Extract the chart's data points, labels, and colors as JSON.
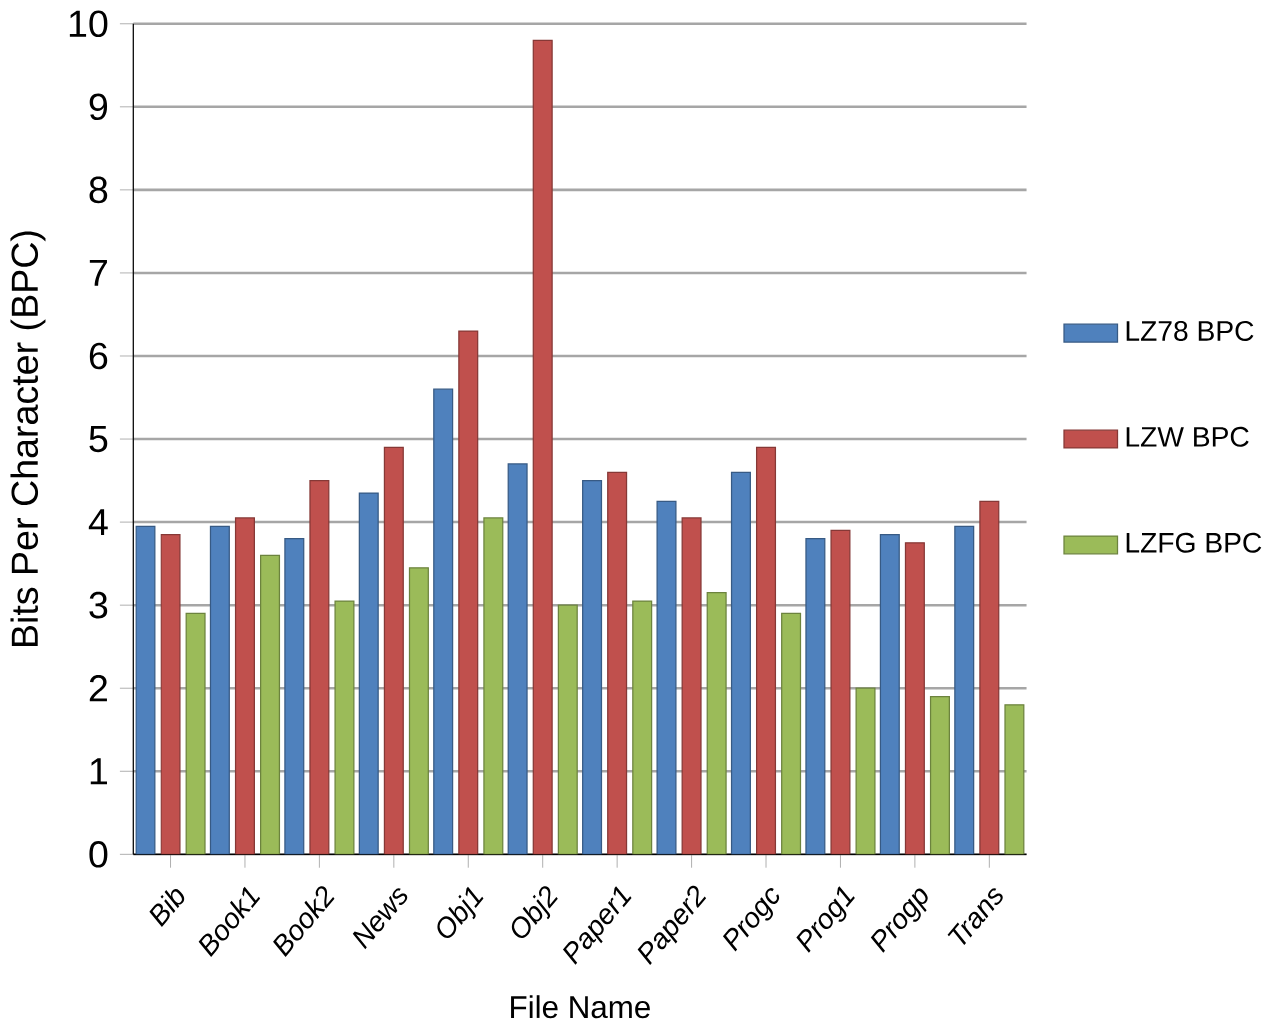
{
  "chart_data": {
    "type": "bar",
    "xlabel": "File Name",
    "ylabel": "Bits Per Character (BPC)",
    "categories": [
      "Bib",
      "Book1",
      "Book2",
      "News",
      "Obj1",
      "Obj2",
      "Paper1",
      "Paper2",
      "Progc",
      "Prog1",
      "Progp",
      "Trans"
    ],
    "series": [
      {
        "name": "LZ78 BPC",
        "color": "#4f81bd",
        "values": [
          3.95,
          3.95,
          3.8,
          4.35,
          5.6,
          4.7,
          4.5,
          4.25,
          4.6,
          3.8,
          3.85,
          3.95
        ]
      },
      {
        "name": "LZW BPC",
        "color": "#c0504d",
        "values": [
          3.85,
          4.05,
          4.5,
          4.9,
          6.3,
          9.8,
          4.6,
          4.05,
          4.9,
          3.9,
          3.75,
          4.25
        ]
      },
      {
        "name": "LZFG BPC",
        "color": "#9bbb59",
        "values": [
          2.9,
          3.6,
          3.05,
          3.45,
          4.05,
          3.0,
          3.05,
          3.15,
          2.9,
          2.0,
          1.9,
          1.8
        ]
      }
    ],
    "ylim": [
      0,
      10
    ],
    "yticks": [
      0,
      1,
      2,
      3,
      4,
      5,
      6,
      7,
      8,
      9,
      10
    ],
    "grid": "y",
    "legend": "right"
  }
}
